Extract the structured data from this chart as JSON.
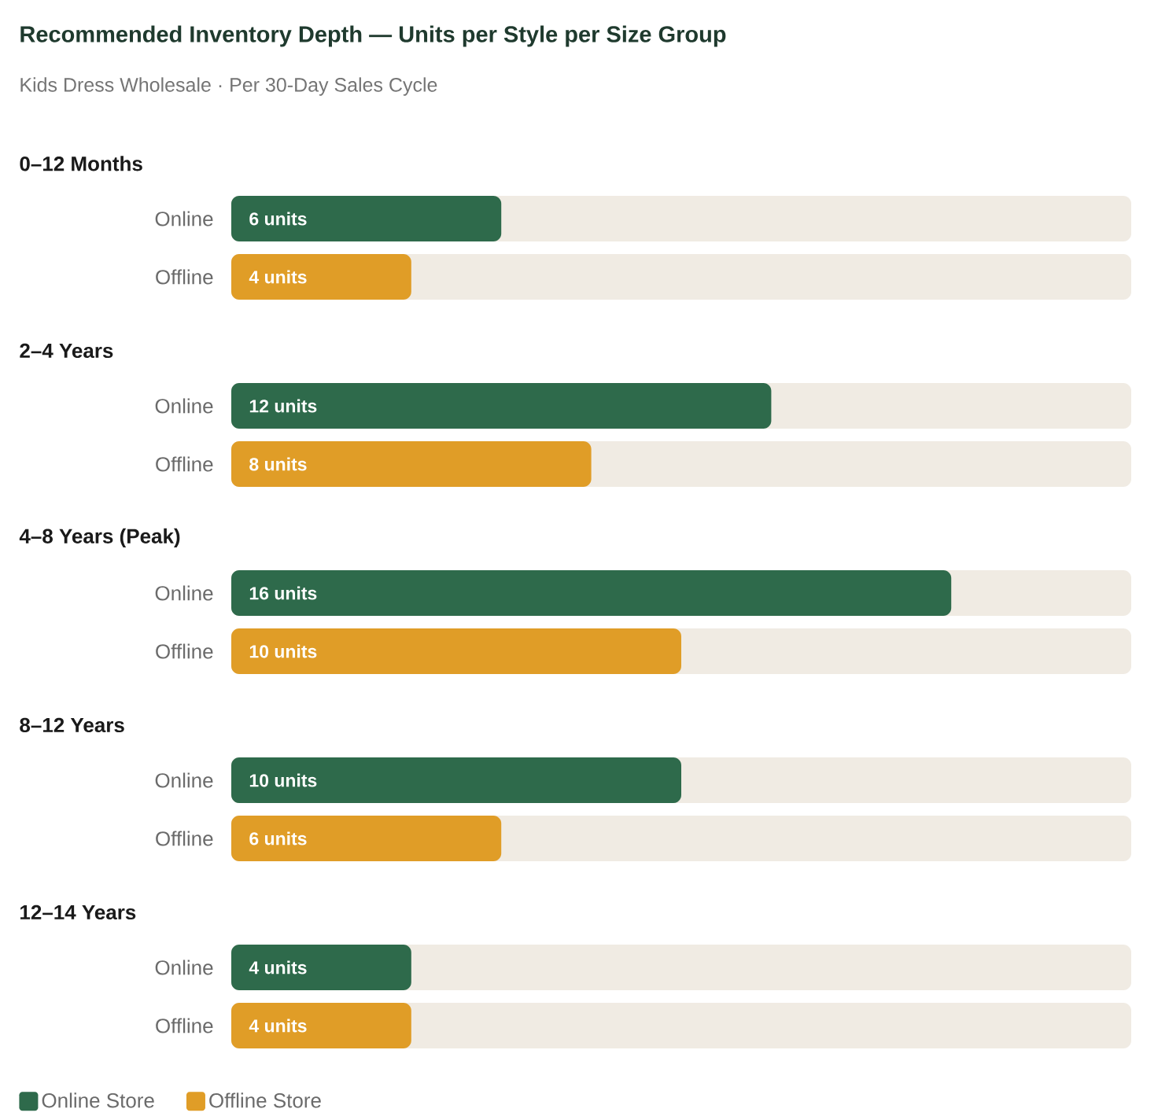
{
  "chart_data": {
    "type": "bar",
    "orientation": "horizontal",
    "title": "Recommended Inventory Depth — Units per Style per Size Group",
    "subtitle": "Kids Dress Wholesale · Per 30-Day Sales Cycle",
    "categories": [
      "0–12 Months",
      "2–4 Years",
      "4–8 Years (Peak)",
      "8–12 Years",
      "12–14 Years"
    ],
    "series": [
      {
        "name": "Online Store",
        "color": "#2e6a4b",
        "values": [
          6,
          12,
          16,
          10,
          4
        ],
        "value_labels": [
          "6 units",
          "12 units",
          "16 units",
          "10 units",
          "4 units"
        ]
      },
      {
        "name": "Offline Store",
        "color": "#e09d27",
        "values": [
          4,
          8,
          10,
          6,
          4
        ],
        "value_labels": [
          "4 units",
          "8 units",
          "10 units",
          "6 units",
          "4 units"
        ]
      }
    ],
    "annotations": [
      "Online",
      "Offline",
      "Online",
      "Offline",
      "Online",
      "Offline",
      "Online",
      "Offline",
      "Online",
      "Offline"
    ],
    "xlim": [
      0,
      20
    ],
    "tick_labels": "y",
    "legend": "bottom"
  }
}
